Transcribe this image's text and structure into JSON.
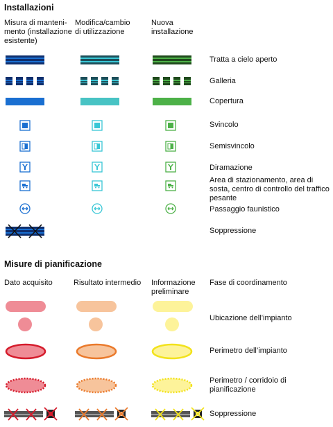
{
  "installazioni": {
    "title": "Installazioni",
    "columns": [
      {
        "label": "Misura di manteni-\nmento (installazione\nesistente)",
        "color": "#1a6fd1"
      },
      {
        "label": "Modifica/cambio\ndi utilizzazione",
        "color": "#39c7d6"
      },
      {
        "label": "Nuova\ninstallazione",
        "color": "#4db148"
      }
    ],
    "rows": [
      {
        "label": "Tratta a cielo aperto",
        "icon": "open-section-line"
      },
      {
        "label": "Galleria",
        "icon": "tunnel-dashed-line"
      },
      {
        "label": "Copertura",
        "icon": "cover-bar"
      },
      {
        "label": "Svincolo",
        "icon": "interchange-icon"
      },
      {
        "label": "Semisvincolo",
        "icon": "half-interchange-icon"
      },
      {
        "label": "Diramazione",
        "icon": "branch-icon"
      },
      {
        "label": "Area di stazionamento, area di\nsosta, centro di controllo del traffico\npesante",
        "icon": "truck-rest-area-icon"
      },
      {
        "label": "Passaggio faunistico",
        "icon": "wildlife-crossing-icon"
      },
      {
        "label": "Soppressione",
        "icon": "suppression-cross-icon"
      }
    ]
  },
  "misure": {
    "title": "Misure di pianificazione",
    "columns": [
      {
        "label": "Dato acquisito",
        "fill": "#ef8c96",
        "stroke": "#d51c2c"
      },
      {
        "label": "Risultato intermedio",
        "fill": "#f7c49c",
        "stroke": "#ea7a2c"
      },
      {
        "label": "Informazione\npreliminare",
        "fill": "#fdf39a",
        "stroke": "#f2e21c"
      }
    ],
    "fourth_column": "Fase di coordinamento",
    "rows": [
      {
        "label": "Ubicazione dell’impianto"
      },
      {
        "label": "Perimetro dell’impianto"
      },
      {
        "label": "Perimetro / corridoio di\npianificazione"
      },
      {
        "label": "Soppressione"
      }
    ]
  }
}
